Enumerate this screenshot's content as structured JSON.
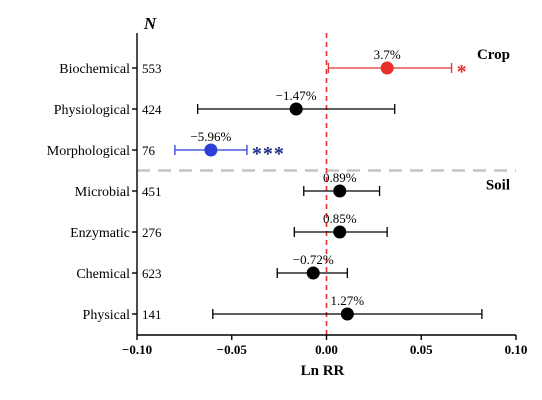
{
  "chart_data": {
    "type": "forest",
    "n_header": "N",
    "xlabel": "Ln RR",
    "xlim": [
      -0.1,
      0.1
    ],
    "xticks": [
      -0.1,
      -0.05,
      0.0,
      0.05,
      0.1
    ],
    "xtick_labels": [
      "−0.10",
      "−0.05",
      "0.00",
      "0.05",
      "0.10"
    ],
    "reference_line": {
      "x": 0.0,
      "style": "dashed",
      "color": "#e8302a"
    },
    "groups": [
      {
        "name": "Crop",
        "rows": [
          "Biochemical",
          "Physiological",
          "Morphological"
        ]
      },
      {
        "name": "Soil",
        "rows": [
          "Microbial",
          "Enzymatic",
          "Chemical",
          "Physical"
        ]
      }
    ],
    "rows": [
      {
        "label": "Biochemical",
        "n": "553",
        "estimate": 0.032,
        "ci": [
          0.001,
          0.066
        ],
        "pct": "3.7%",
        "sig": "*",
        "color": "#e8302a"
      },
      {
        "label": "Physiological",
        "n": "424",
        "estimate": -0.016,
        "ci": [
          -0.068,
          0.036
        ],
        "pct": "−1.47%",
        "sig": "",
        "color": "#000000"
      },
      {
        "label": "Morphological",
        "n": "76",
        "estimate": -0.061,
        "ci": [
          -0.08,
          -0.042
        ],
        "pct": "−5.96%",
        "sig": "***",
        "color": "#2b3fd6"
      },
      {
        "label": "Microbial",
        "n": "451",
        "estimate": 0.007,
        "ci": [
          -0.012,
          0.028
        ],
        "pct": "0.89%",
        "sig": "",
        "color": "#000000"
      },
      {
        "label": "Enzymatic",
        "n": "276",
        "estimate": 0.007,
        "ci": [
          -0.017,
          0.032
        ],
        "pct": "0.85%",
        "sig": "",
        "color": "#000000"
      },
      {
        "label": "Chemical",
        "n": "623",
        "estimate": -0.007,
        "ci": [
          -0.026,
          0.011
        ],
        "pct": "−0.72%",
        "sig": "",
        "color": "#000000"
      },
      {
        "label": "Physical",
        "n": "141",
        "estimate": 0.011,
        "ci": [
          -0.06,
          0.082
        ],
        "pct": "1.27%",
        "sig": "",
        "color": "#000000"
      }
    ],
    "colors": {
      "significant_positive": "#e8302a",
      "significant_negative": "#2b3fd6",
      "nonsignificant": "#000000",
      "sig_positive_stars": "#e8302a",
      "sig_negative_stars": "#1f2b8a",
      "group_divider": "#c4c4c4"
    }
  }
}
